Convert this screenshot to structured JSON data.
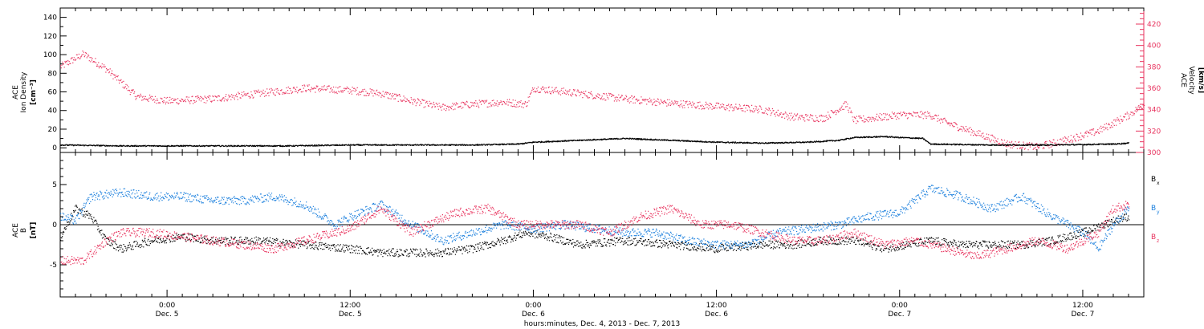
{
  "chart_data": [
    {
      "type": "scatter",
      "panel": "top",
      "left_axis": {
        "label_lines": [
          "ACE",
          "Ion Density"
        ],
        "unit": "[cm⁻³]",
        "ylim": [
          -5,
          150
        ],
        "ticks": [
          0,
          20,
          40,
          60,
          80,
          100,
          120,
          140
        ],
        "tick_labels": [
          "0",
          "20",
          "40",
          "60",
          "80",
          "100",
          "120",
          "140"
        ]
      },
      "right_axis": {
        "label_lines": [
          "ACE",
          "Velocity"
        ],
        "unit": "[km/s]",
        "ylim": [
          300,
          435
        ],
        "ticks": [
          300,
          320,
          340,
          360,
          380,
          400,
          420
        ],
        "tick_labels": [
          "300",
          "320",
          "340",
          "360",
          "380",
          "400",
          "420"
        ],
        "color": "#e8335e"
      },
      "x_hours": [
        -7,
        64
      ],
      "series": [
        {
          "color": "#000000",
          "axis": "left",
          "points": [
            [
              -7,
              3
            ],
            [
              -3,
              2
            ],
            [
              0,
              2
            ],
            [
              4,
              2
            ],
            [
              8,
              2
            ],
            [
              12,
              3
            ],
            [
              16,
              3
            ],
            [
              20,
              3
            ],
            [
              23,
              4
            ],
            [
              24,
              6
            ],
            [
              27,
              8
            ],
            [
              30,
              10
            ],
            [
              33,
              8
            ],
            [
              36,
              6
            ],
            [
              39,
              5
            ],
            [
              42,
              6
            ],
            [
              44,
              8
            ],
            [
              45,
              11
            ],
            [
              47,
              12
            ],
            [
              48,
              11
            ],
            [
              49.5,
              10
            ],
            [
              50,
              4
            ],
            [
              54,
              3
            ],
            [
              58,
              3
            ],
            [
              62,
              4
            ],
            [
              63,
              5
            ]
          ]
        },
        {
          "color": "#e8335e",
          "axis": "right",
          "points": [
            [
              -7,
              380
            ],
            [
              -5.5,
              392
            ],
            [
              -4,
              378
            ],
            [
              -2,
              352
            ],
            [
              0,
              348
            ],
            [
              3,
              350
            ],
            [
              6,
              355
            ],
            [
              9,
              360
            ],
            [
              12,
              358
            ],
            [
              14,
              355
            ],
            [
              16,
              348
            ],
            [
              18,
              342
            ],
            [
              20,
              345
            ],
            [
              22,
              347
            ],
            [
              23.5,
              345
            ],
            [
              24,
              360
            ],
            [
              27,
              355
            ],
            [
              30,
              350
            ],
            [
              33,
              346
            ],
            [
              36,
              343
            ],
            [
              39,
              340
            ],
            [
              41,
              333
            ],
            [
              43,
              332
            ],
            [
              44.5,
              345
            ],
            [
              45,
              330
            ],
            [
              48,
              335
            ],
            [
              50,
              335
            ],
            [
              51,
              328
            ],
            [
              53,
              318
            ],
            [
              55,
              308
            ],
            [
              57,
              305
            ],
            [
              59,
              312
            ],
            [
              61,
              320
            ],
            [
              63,
              335
            ],
            [
              64,
              345
            ]
          ]
        }
      ]
    },
    {
      "type": "scatter",
      "panel": "bottom",
      "left_axis": {
        "label_lines": [
          "ACE",
          "B"
        ],
        "unit": "[nT]",
        "ylim": [
          -9,
          9
        ],
        "ticks": [
          -5,
          0,
          5
        ],
        "tick_labels": [
          "-5",
          "0",
          "5"
        ]
      },
      "x_hours": [
        -7,
        64
      ],
      "legend": [
        {
          "label": "B",
          "sub": "x",
          "color": "#000000"
        },
        {
          "label": "B",
          "sub": "y",
          "color": "#1a7fdd"
        },
        {
          "label": "B",
          "sub": "z",
          "color": "#e8335e"
        }
      ],
      "series": [
        {
          "color": "#000000",
          "points": [
            [
              -7,
              -1.5
            ],
            [
              -6,
              2
            ],
            [
              -5,
              1
            ],
            [
              -4,
              -2
            ],
            [
              -3,
              -3
            ],
            [
              -1,
              -2
            ],
            [
              1,
              -1.5
            ],
            [
              3,
              -2
            ],
            [
              6,
              -2
            ],
            [
              9,
              -2.5
            ],
            [
              12,
              -3
            ],
            [
              14,
              -3.5
            ],
            [
              16,
              -3.5
            ],
            [
              18,
              -3.5
            ],
            [
              20,
              -3
            ],
            [
              22,
              -2
            ],
            [
              23.5,
              -1
            ],
            [
              25,
              -1.5
            ],
            [
              27,
              -2.5
            ],
            [
              30,
              -2
            ],
            [
              33,
              -2.5
            ],
            [
              36,
              -3
            ],
            [
              39,
              -2.5
            ],
            [
              41,
              -2.5
            ],
            [
              43,
              -2
            ],
            [
              45,
              -2
            ],
            [
              47,
              -3
            ],
            [
              50,
              -2
            ],
            [
              52,
              -2.5
            ],
            [
              54,
              -2.5
            ],
            [
              56,
              -2.5
            ],
            [
              58,
              -2
            ],
            [
              60,
              -1
            ],
            [
              62,
              0.5
            ],
            [
              63,
              1
            ]
          ]
        },
        {
          "color": "#1a7fdd",
          "points": [
            [
              -7,
              1
            ],
            [
              -6,
              0.5
            ],
            [
              -5,
              3.5
            ],
            [
              -3,
              4
            ],
            [
              -1,
              3.5
            ],
            [
              1,
              3.5
            ],
            [
              3,
              3
            ],
            [
              5,
              3
            ],
            [
              7,
              3.5
            ],
            [
              9,
              2.5
            ],
            [
              11,
              0
            ],
            [
              12,
              1
            ],
            [
              14,
              2.5
            ],
            [
              16,
              0
            ],
            [
              18,
              -2
            ],
            [
              20,
              -1
            ],
            [
              22,
              0
            ],
            [
              24,
              -0.5
            ],
            [
              26,
              0
            ],
            [
              28,
              -0.5
            ],
            [
              30,
              -1
            ],
            [
              32,
              -1
            ],
            [
              34,
              -2
            ],
            [
              36,
              -2.5
            ],
            [
              38,
              -2.5
            ],
            [
              40,
              -1
            ],
            [
              42,
              -0.5
            ],
            [
              44,
              0
            ],
            [
              46,
              1
            ],
            [
              48,
              1.5
            ],
            [
              50,
              4.5
            ],
            [
              52,
              3.5
            ],
            [
              54,
              2
            ],
            [
              56,
              3.5
            ],
            [
              58,
              1
            ],
            [
              60,
              -1
            ],
            [
              61,
              -3
            ],
            [
              62,
              0
            ],
            [
              63,
              2
            ]
          ]
        },
        {
          "color": "#e8335e",
          "points": [
            [
              -7,
              -4.5
            ],
            [
              -5.5,
              -4.5
            ],
            [
              -4,
              -2
            ],
            [
              -3,
              -1
            ],
            [
              -1,
              -1
            ],
            [
              1,
              -1.5
            ],
            [
              3,
              -2
            ],
            [
              5,
              -2.5
            ],
            [
              7,
              -3
            ],
            [
              9,
              -2
            ],
            [
              11,
              -1
            ],
            [
              12,
              -0.5
            ],
            [
              14,
              2
            ],
            [
              16,
              -1
            ],
            [
              17,
              0
            ],
            [
              19,
              1.5
            ],
            [
              21,
              2
            ],
            [
              23,
              0
            ],
            [
              25,
              0
            ],
            [
              27,
              0
            ],
            [
              29,
              -1
            ],
            [
              31,
              1
            ],
            [
              33,
              2
            ],
            [
              35,
              0
            ],
            [
              37,
              0
            ],
            [
              39,
              -1
            ],
            [
              41,
              -2
            ],
            [
              43,
              -2
            ],
            [
              45,
              -1
            ],
            [
              47,
              -2.5
            ],
            [
              49,
              -2
            ],
            [
              51,
              -3
            ],
            [
              53,
              -4
            ],
            [
              55,
              -3
            ],
            [
              57,
              -2
            ],
            [
              59,
              -3
            ],
            [
              61,
              -1
            ],
            [
              62,
              2
            ],
            [
              63,
              2.5
            ]
          ]
        }
      ],
      "zero_line": true
    }
  ],
  "x_axis": {
    "ticks_hours": [
      0,
      12,
      24,
      36,
      48,
      60
    ],
    "tick_time_labels": [
      "0:00",
      "12:00",
      "0:00",
      "12:00",
      "0:00",
      "12:00"
    ],
    "tick_date_labels": [
      "Dec. 5",
      "Dec. 5",
      "Dec. 6",
      "Dec. 6",
      "Dec. 7",
      "Dec. 7"
    ],
    "minor_tick_every_hours": 1,
    "range_hours": [
      -7,
      64
    ],
    "title": "hours:minutes, Dec.  4, 2013 - Dec. 7, 2013"
  },
  "colors": {
    "density": "#000000",
    "velocity": "#e8335e",
    "bx": "#000000",
    "by": "#1a7fdd",
    "bz": "#e8335e"
  }
}
